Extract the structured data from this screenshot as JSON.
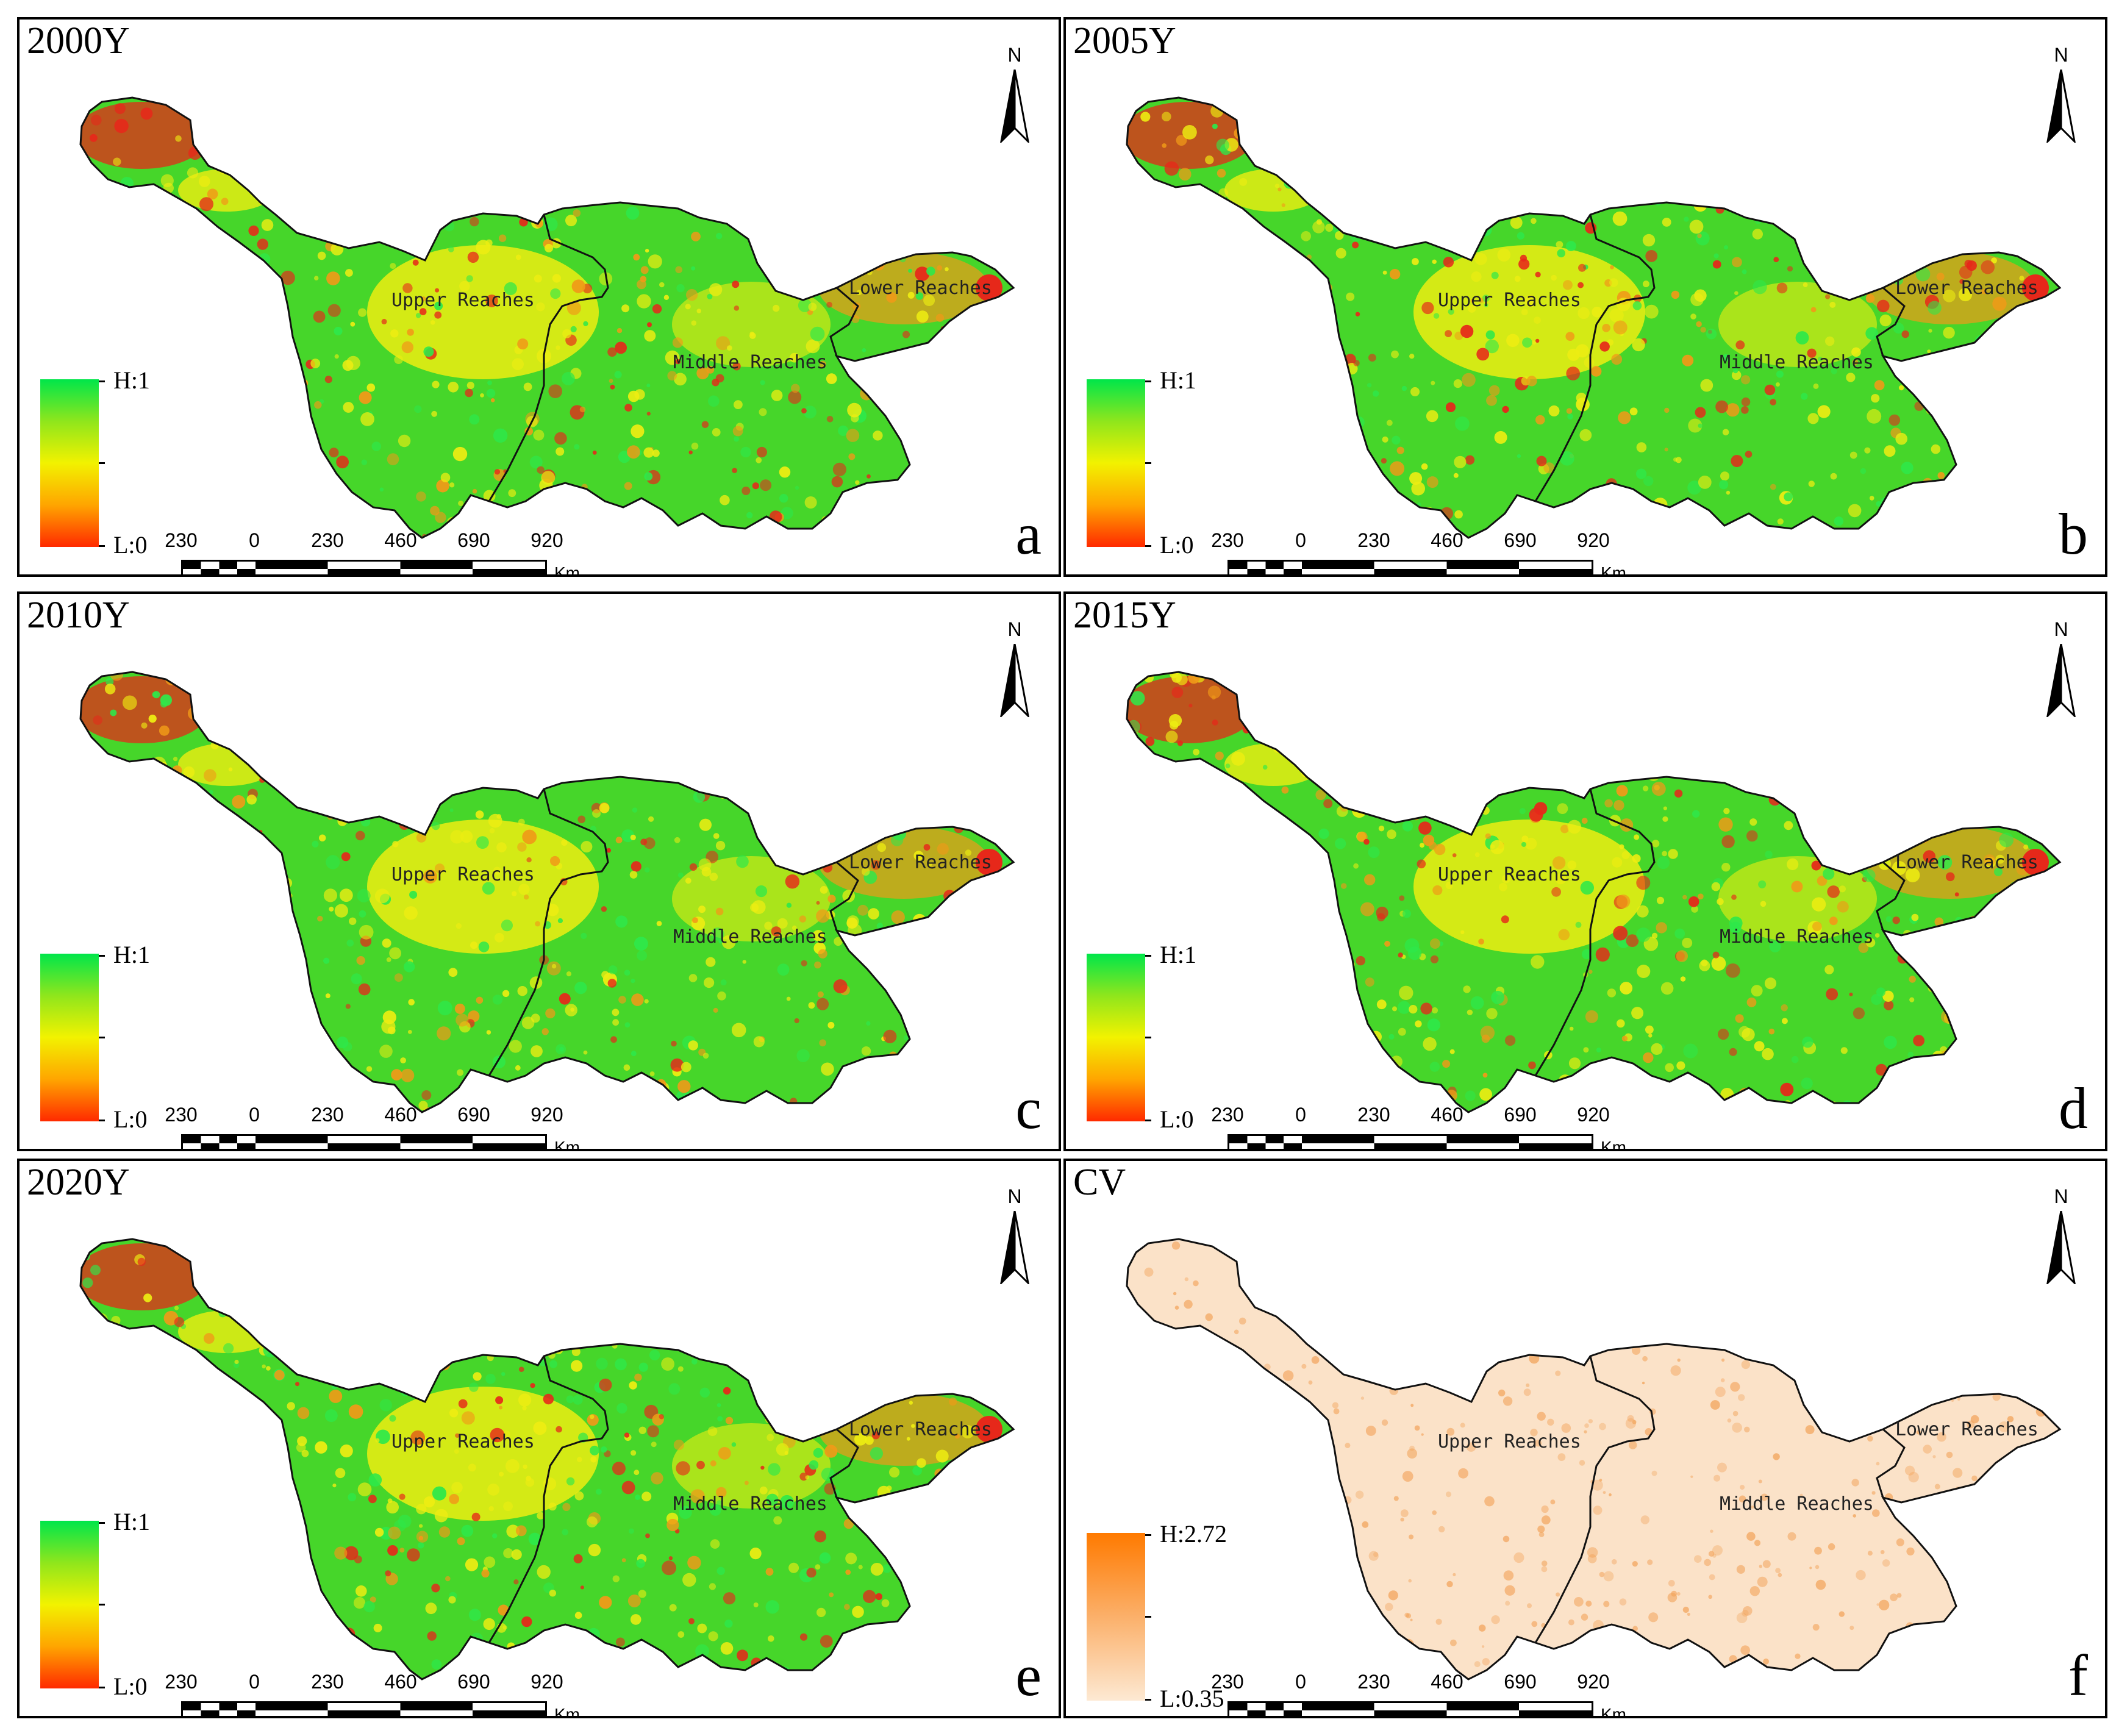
{
  "panels": [
    {
      "year_label": "2000Y",
      "panel_letter": "a",
      "variant": "ebs"
    },
    {
      "year_label": "2005Y",
      "panel_letter": "b",
      "variant": "ebs"
    },
    {
      "year_label": "2010Y",
      "panel_letter": "c",
      "variant": "ebs"
    },
    {
      "year_label": "2015Y",
      "panel_letter": "d",
      "variant": "ebs"
    },
    {
      "year_label": "2020Y",
      "panel_letter": "e",
      "variant": "ebs"
    },
    {
      "year_label": "CV",
      "panel_letter": "f",
      "variant": "cv"
    }
  ],
  "regions": {
    "upper": "Upper Reaches",
    "middle": "Middle Reaches",
    "lower": "Lower Reaches"
  },
  "north_label": "N",
  "legend_ebs": {
    "high": "H:1",
    "low": "L:0",
    "colors": [
      "#00e64a",
      "#8fe61c",
      "#f2f200",
      "#ffa500",
      "#ff2a00"
    ]
  },
  "legend_cv": {
    "high": "H:2.72",
    "low": "L:0.35",
    "colors": [
      "#ff7a00",
      "#fbb06a",
      "#fde9d3"
    ]
  },
  "scale_bar": {
    "ticks": [
      "230",
      "0",
      "230",
      "460",
      "690",
      "920"
    ],
    "unit": "Km"
  },
  "colors": {
    "basin_green": "#46d62a",
    "basin_yellow": "#eded12",
    "basin_orange": "#f09a18",
    "basin_red": "#e6281a",
    "cv_fill": "#fbe2c8",
    "cv_dark": "#f2a35a"
  }
}
